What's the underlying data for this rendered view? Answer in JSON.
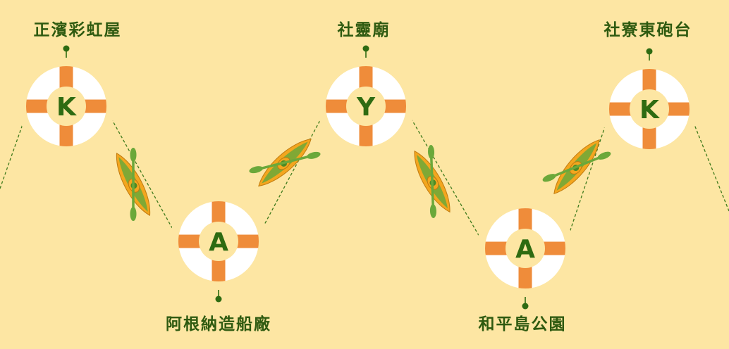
{
  "colors": {
    "background": "#fde6a3",
    "ring": "#ffffff",
    "ring_inner": "#fde6a3",
    "strap": "#ef8c3a",
    "letter": "#2e6b12",
    "path": "#3f7a1c",
    "pin": "#2e6b12",
    "kayak_hull": "#f3a61e",
    "kayak_deck": "#6ba83a",
    "paddle": "#6ba83a"
  },
  "stops": [
    {
      "letter": "K",
      "label": "正濱彩虹屋"
    },
    {
      "letter": "A",
      "label": "阿根納造船廠"
    },
    {
      "letter": "Y",
      "label": "社靈廟"
    },
    {
      "letter": "A",
      "label": "和平島公園"
    },
    {
      "letter": "K",
      "label": "社寮東砲台"
    }
  ],
  "icons": [
    "life-ring-icon",
    "kayak-icon"
  ]
}
